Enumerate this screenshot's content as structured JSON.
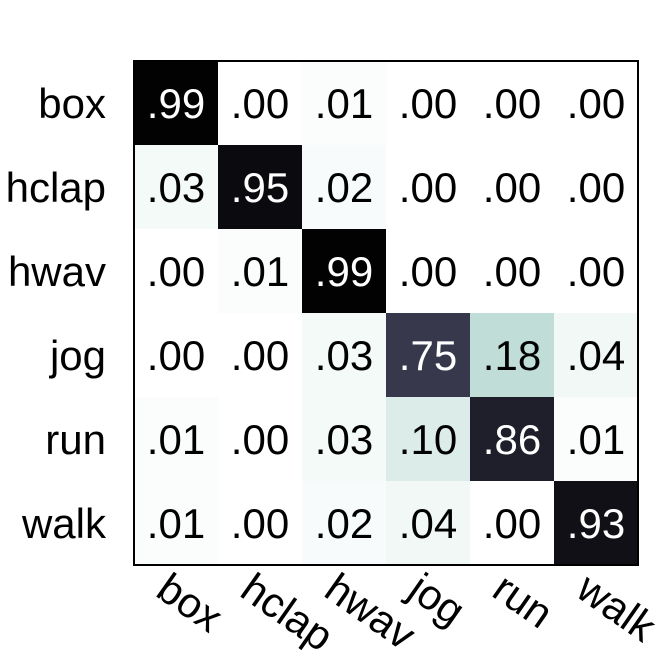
{
  "chart_data": {
    "type": "heatmap",
    "row_labels": [
      "box",
      "hclap",
      "hwav",
      "jog",
      "run",
      "walk"
    ],
    "col_labels": [
      "box",
      "hclap",
      "hwav",
      "jog",
      "run",
      "walk"
    ],
    "values": [
      [
        0.99,
        0.0,
        0.01,
        0.0,
        0.0,
        0.0
      ],
      [
        0.03,
        0.95,
        0.02,
        0.0,
        0.0,
        0.0
      ],
      [
        0.0,
        0.01,
        0.99,
        0.0,
        0.0,
        0.0
      ],
      [
        0.0,
        0.0,
        0.03,
        0.75,
        0.18,
        0.04
      ],
      [
        0.01,
        0.0,
        0.03,
        0.1,
        0.86,
        0.01
      ],
      [
        0.01,
        0.0,
        0.02,
        0.04,
        0.0,
        0.93
      ]
    ],
    "cell_labels": [
      [
        ".99",
        ".00",
        ".01",
        ".00",
        ".00",
        ".00"
      ],
      [
        ".03",
        ".95",
        ".02",
        ".00",
        ".00",
        ".00"
      ],
      [
        ".00",
        ".01",
        ".99",
        ".00",
        ".00",
        ".00"
      ],
      [
        ".00",
        ".00",
        ".03",
        ".75",
        ".18",
        ".04"
      ],
      [
        ".01",
        ".00",
        ".03",
        ".10",
        ".86",
        ".01"
      ],
      [
        ".01",
        ".00",
        ".02",
        ".04",
        ".00",
        ".93"
      ]
    ],
    "title": "",
    "xlabel": "",
    "ylabel": "",
    "vlim": [
      0,
      1
    ],
    "colormap": "bone_r",
    "grid": false,
    "legend": "none"
  }
}
